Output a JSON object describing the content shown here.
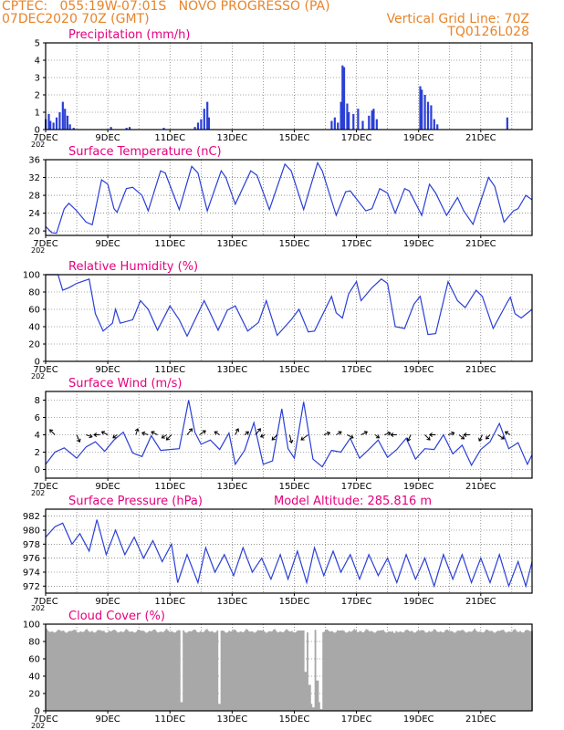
{
  "header": {
    "line1_left": "CPTEC:   055:19W-07:01S   NOVO PROGRESSO (PA)",
    "line2_left": "07DEC2020 70Z (GMT)",
    "line2_right": "Vertical Grid Line: 70Z",
    "line3_right": "TQ0126L028",
    "year_fragment": "202"
  },
  "colors": {
    "header": "#e8842a",
    "title": "#e6007e",
    "series": "#2a3fd6",
    "cloud": "#a8a8a8",
    "grid": "#555555"
  },
  "x_ticks": [
    "7DEC",
    "9DEC",
    "11DEC",
    "13DEC",
    "15DEC",
    "17DEC",
    "19DEC",
    "21DEC"
  ],
  "chart_data": [
    {
      "type": "bar",
      "title": "Precipitation (mm/h)",
      "x_range": [
        "07DEC2020",
        "22DEC2020"
      ],
      "ylim": [
        0,
        5
      ],
      "y_ticks": [
        "0",
        "1",
        "2",
        "3",
        "4",
        "5"
      ],
      "points": [
        [
          0.0,
          0.6
        ],
        [
          0.1,
          0.9
        ],
        [
          0.15,
          0.5
        ],
        [
          0.25,
          0.4
        ],
        [
          0.35,
          0.7
        ],
        [
          0.45,
          1.0
        ],
        [
          0.55,
          1.6
        ],
        [
          0.62,
          1.2
        ],
        [
          0.7,
          0.8
        ],
        [
          0.78,
          0.3
        ],
        [
          0.9,
          0.1
        ],
        [
          2.1,
          0.15
        ],
        [
          2.6,
          0.1
        ],
        [
          2.7,
          0.15
        ],
        [
          3.8,
          0.1
        ],
        [
          4.8,
          0.15
        ],
        [
          4.9,
          0.4
        ],
        [
          5.0,
          0.6
        ],
        [
          5.1,
          1.2
        ],
        [
          5.2,
          1.6
        ],
        [
          5.25,
          0.7
        ],
        [
          9.2,
          0.5
        ],
        [
          9.3,
          0.7
        ],
        [
          9.4,
          0.4
        ],
        [
          9.5,
          1.6
        ],
        [
          9.55,
          3.7
        ],
        [
          9.6,
          3.6
        ],
        [
          9.7,
          1.5
        ],
        [
          9.75,
          1.0
        ],
        [
          9.9,
          0.9
        ],
        [
          10.05,
          1.2
        ],
        [
          10.2,
          0.5
        ],
        [
          10.4,
          0.8
        ],
        [
          10.5,
          1.1
        ],
        [
          10.55,
          1.2
        ],
        [
          10.65,
          0.6
        ],
        [
          12.05,
          2.5
        ],
        [
          12.1,
          2.3
        ],
        [
          12.2,
          2.0
        ],
        [
          12.3,
          1.6
        ],
        [
          12.4,
          1.4
        ],
        [
          12.5,
          0.6
        ],
        [
          12.6,
          0.3
        ],
        [
          14.85,
          0.7
        ]
      ]
    },
    {
      "type": "line",
      "title": "Surface Temperature (nC)",
      "x_range": [
        "07DEC2020",
        "22DEC2020"
      ],
      "ylim": [
        19,
        36
      ],
      "y_ticks": [
        "20",
        "24",
        "28",
        "32",
        "36"
      ],
      "points": [
        [
          0.0,
          21.0
        ],
        [
          0.2,
          19.6
        ],
        [
          0.35,
          19.5
        ],
        [
          0.6,
          25.0
        ],
        [
          0.75,
          26.2
        ],
        [
          1.0,
          24.5
        ],
        [
          1.3,
          22.0
        ],
        [
          1.5,
          21.4
        ],
        [
          1.8,
          31.5
        ],
        [
          2.0,
          30.5
        ],
        [
          2.2,
          25.0
        ],
        [
          2.3,
          24.2
        ],
        [
          2.6,
          29.5
        ],
        [
          2.8,
          29.8
        ],
        [
          3.1,
          28.0
        ],
        [
          3.3,
          24.5
        ],
        [
          3.7,
          33.5
        ],
        [
          3.85,
          33.0
        ],
        [
          4.3,
          24.8
        ],
        [
          4.7,
          34.5
        ],
        [
          4.9,
          33.0
        ],
        [
          5.2,
          24.5
        ],
        [
          5.65,
          33.5
        ],
        [
          5.8,
          32.0
        ],
        [
          6.1,
          26.0
        ],
        [
          6.6,
          33.5
        ],
        [
          6.8,
          32.5
        ],
        [
          7.2,
          24.8
        ],
        [
          7.7,
          35.0
        ],
        [
          7.9,
          33.5
        ],
        [
          8.3,
          24.8
        ],
        [
          8.75,
          35.3
        ],
        [
          8.9,
          33.5
        ],
        [
          9.35,
          23.5
        ],
        [
          9.65,
          28.8
        ],
        [
          9.8,
          29.0
        ],
        [
          10.3,
          24.5
        ],
        [
          10.5,
          25.0
        ],
        [
          10.75,
          29.5
        ],
        [
          11.0,
          28.5
        ],
        [
          11.25,
          24.0
        ],
        [
          11.55,
          29.5
        ],
        [
          11.7,
          29.0
        ],
        [
          12.1,
          23.5
        ],
        [
          12.35,
          30.5
        ],
        [
          12.55,
          28.5
        ],
        [
          12.9,
          23.5
        ],
        [
          13.25,
          27.5
        ],
        [
          13.45,
          24.5
        ],
        [
          13.75,
          21.5
        ],
        [
          14.25,
          32.0
        ],
        [
          14.45,
          30.0
        ],
        [
          14.75,
          22.0
        ],
        [
          15.05,
          24.5
        ],
        [
          15.2,
          25.0
        ],
        [
          15.45,
          28.0
        ],
        [
          15.65,
          27.0
        ]
      ]
    },
    {
      "type": "line",
      "title": "Relative Humidity (%)",
      "x_range": [
        "07DEC2020",
        "22DEC2020"
      ],
      "ylim": [
        0,
        100
      ],
      "y_ticks": [
        "0",
        "20",
        "40",
        "60",
        "80",
        "100"
      ],
      "points": [
        [
          0.0,
          100
        ],
        [
          0.4,
          100
        ],
        [
          0.55,
          82
        ],
        [
          0.75,
          85
        ],
        [
          1.0,
          90
        ],
        [
          1.4,
          95
        ],
        [
          1.6,
          55
        ],
        [
          1.85,
          35
        ],
        [
          2.15,
          44
        ],
        [
          2.25,
          60
        ],
        [
          2.4,
          44
        ],
        [
          2.8,
          48
        ],
        [
          3.05,
          70
        ],
        [
          3.3,
          60
        ],
        [
          3.6,
          36
        ],
        [
          4.0,
          64
        ],
        [
          4.3,
          48
        ],
        [
          4.55,
          29
        ],
        [
          5.1,
          70
        ],
        [
          5.25,
          59
        ],
        [
          5.55,
          36
        ],
        [
          5.85,
          59
        ],
        [
          6.1,
          64
        ],
        [
          6.5,
          35
        ],
        [
          6.85,
          45
        ],
        [
          7.1,
          70
        ],
        [
          7.45,
          30
        ],
        [
          7.9,
          48
        ],
        [
          8.15,
          60
        ],
        [
          8.45,
          34
        ],
        [
          8.65,
          35
        ],
        [
          9.2,
          75
        ],
        [
          9.35,
          56
        ],
        [
          9.55,
          50
        ],
        [
          9.75,
          78
        ],
        [
          10.0,
          92
        ],
        [
          10.15,
          70
        ],
        [
          10.5,
          85
        ],
        [
          10.8,
          95
        ],
        [
          11.0,
          90
        ],
        [
          11.25,
          40
        ],
        [
          11.55,
          38
        ],
        [
          11.85,
          66
        ],
        [
          12.05,
          75
        ],
        [
          12.3,
          31
        ],
        [
          12.55,
          32
        ],
        [
          12.95,
          92
        ],
        [
          13.25,
          70
        ],
        [
          13.5,
          62
        ],
        [
          13.85,
          82
        ],
        [
          14.05,
          75
        ],
        [
          14.4,
          38
        ],
        [
          14.85,
          68
        ],
        [
          14.95,
          74
        ],
        [
          15.1,
          55
        ],
        [
          15.3,
          50
        ],
        [
          15.65,
          60
        ]
      ]
    },
    {
      "type": "line",
      "title": "Surface Wind (m/s)",
      "x_range": [
        "07DEC2020",
        "22DEC2020"
      ],
      "ylim": [
        -1,
        9
      ],
      "y_ticks": [
        "0",
        "2",
        "4",
        "6",
        "8"
      ],
      "points": [
        [
          0.0,
          0.6
        ],
        [
          0.3,
          2.0
        ],
        [
          0.6,
          2.5
        ],
        [
          1.0,
          1.3
        ],
        [
          1.3,
          2.6
        ],
        [
          1.6,
          3.2
        ],
        [
          1.9,
          2.1
        ],
        [
          2.2,
          3.4
        ],
        [
          2.5,
          4.3
        ],
        [
          2.8,
          1.9
        ],
        [
          3.1,
          1.5
        ],
        [
          3.4,
          3.9
        ],
        [
          3.7,
          2.2
        ],
        [
          4.0,
          2.3
        ],
        [
          4.3,
          2.4
        ],
        [
          4.6,
          8.0
        ],
        [
          4.8,
          4.3
        ],
        [
          5.0,
          2.9
        ],
        [
          5.3,
          3.4
        ],
        [
          5.6,
          2.3
        ],
        [
          5.9,
          4.2
        ],
        [
          6.1,
          0.6
        ],
        [
          6.4,
          2.2
        ],
        [
          6.7,
          5.4
        ],
        [
          7.0,
          0.6
        ],
        [
          7.3,
          1.0
        ],
        [
          7.6,
          7.0
        ],
        [
          7.8,
          2.4
        ],
        [
          8.0,
          1.3
        ],
        [
          8.3,
          7.8
        ],
        [
          8.6,
          1.2
        ],
        [
          8.9,
          0.3
        ],
        [
          9.2,
          2.2
        ],
        [
          9.5,
          2.0
        ],
        [
          9.8,
          3.6
        ],
        [
          10.1,
          1.3
        ],
        [
          10.4,
          2.3
        ],
        [
          10.7,
          3.4
        ],
        [
          11.0,
          1.4
        ],
        [
          11.3,
          2.3
        ],
        [
          11.6,
          3.6
        ],
        [
          11.9,
          1.2
        ],
        [
          12.2,
          2.4
        ],
        [
          12.5,
          2.3
        ],
        [
          12.8,
          4.0
        ],
        [
          13.1,
          1.8
        ],
        [
          13.4,
          2.8
        ],
        [
          13.7,
          0.5
        ],
        [
          14.0,
          2.3
        ],
        [
          14.3,
          3.2
        ],
        [
          14.6,
          5.3
        ],
        [
          14.9,
          2.4
        ],
        [
          15.2,
          3.1
        ],
        [
          15.5,
          0.6
        ],
        [
          15.65,
          1.7
        ]
      ],
      "vectors": [
        [
          0.3,
          -0.5,
          0.5
        ],
        [
          1.0,
          0.3,
          -0.7
        ],
        [
          1.3,
          0.6,
          -0.2
        ],
        [
          1.75,
          -0.6,
          0.0
        ],
        [
          2.0,
          -0.6,
          0.3
        ],
        [
          2.3,
          -0.4,
          -0.3
        ],
        [
          2.9,
          0.2,
          0.6
        ],
        [
          3.3,
          -0.6,
          0.2
        ],
        [
          3.6,
          -0.6,
          0.3
        ],
        [
          3.9,
          -0.5,
          -0.3
        ],
        [
          4.05,
          -0.5,
          -0.5
        ],
        [
          4.55,
          0.5,
          0.6
        ],
        [
          4.95,
          0.6,
          0.4
        ],
        [
          5.6,
          -0.5,
          0.3
        ],
        [
          6.1,
          0.3,
          0.6
        ],
        [
          6.4,
          0.4,
          0.3
        ],
        [
          6.75,
          0.5,
          0.6
        ],
        [
          7.05,
          -0.4,
          -0.2
        ],
        [
          7.45,
          -0.5,
          -0.5
        ],
        [
          7.85,
          0.2,
          -0.8
        ],
        [
          8.45,
          -0.7,
          -0.5
        ],
        [
          8.95,
          0.6,
          0.2
        ],
        [
          9.35,
          0.5,
          0.3
        ],
        [
          9.7,
          0.6,
          -0.3
        ],
        [
          10.15,
          0.6,
          0.3
        ],
        [
          10.6,
          0.4,
          -0.3
        ],
        [
          10.9,
          0.6,
          0.2
        ],
        [
          11.3,
          -0.6,
          0.0
        ],
        [
          11.75,
          -0.3,
          -0.6
        ],
        [
          12.2,
          0.5,
          -0.5
        ],
        [
          12.55,
          -0.6,
          0.0
        ],
        [
          12.95,
          0.6,
          0.2
        ],
        [
          13.3,
          0.5,
          -0.4
        ],
        [
          13.65,
          -0.6,
          0.0
        ],
        [
          14.05,
          -0.3,
          -0.6
        ],
        [
          14.3,
          -0.4,
          -0.4
        ],
        [
          14.55,
          0.6,
          -0.4
        ],
        [
          14.95,
          -0.5,
          0.3
        ]
      ]
    },
    {
      "type": "line",
      "title": "Surface Pressure (hPa)",
      "annotation": "Model Altitude: 285.816 m",
      "x_range": [
        "07DEC2020",
        "22DEC2020"
      ],
      "ylim": [
        971,
        983
      ],
      "y_ticks": [
        "972",
        "974",
        "976",
        "978",
        "980",
        "982"
      ],
      "points": [
        [
          0.0,
          979.0
        ],
        [
          0.3,
          980.5
        ],
        [
          0.55,
          981.0
        ],
        [
          0.85,
          978.0
        ],
        [
          1.1,
          979.5
        ],
        [
          1.4,
          977.0
        ],
        [
          1.65,
          981.5
        ],
        [
          1.95,
          976.5
        ],
        [
          2.25,
          980.0
        ],
        [
          2.55,
          976.5
        ],
        [
          2.85,
          979.0
        ],
        [
          3.15,
          976.0
        ],
        [
          3.45,
          978.5
        ],
        [
          3.75,
          975.5
        ],
        [
          4.05,
          978.0
        ],
        [
          4.25,
          972.5
        ],
        [
          4.55,
          976.5
        ],
        [
          4.9,
          972.5
        ],
        [
          5.15,
          977.5
        ],
        [
          5.45,
          974.0
        ],
        [
          5.75,
          976.5
        ],
        [
          6.05,
          973.5
        ],
        [
          6.35,
          977.5
        ],
        [
          6.65,
          974.0
        ],
        [
          6.95,
          976.0
        ],
        [
          7.25,
          973.0
        ],
        [
          7.55,
          976.5
        ],
        [
          7.8,
          973.0
        ],
        [
          8.1,
          977.0
        ],
        [
          8.4,
          972.5
        ],
        [
          8.65,
          977.5
        ],
        [
          8.95,
          973.5
        ],
        [
          9.25,
          977.0
        ],
        [
          9.5,
          974.0
        ],
        [
          9.8,
          976.5
        ],
        [
          10.1,
          973.0
        ],
        [
          10.4,
          976.5
        ],
        [
          10.7,
          973.5
        ],
        [
          11.0,
          976.0
        ],
        [
          11.3,
          972.5
        ],
        [
          11.6,
          976.5
        ],
        [
          11.9,
          973.0
        ],
        [
          12.2,
          976.0
        ],
        [
          12.5,
          972.0
        ],
        [
          12.8,
          976.5
        ],
        [
          13.1,
          973.0
        ],
        [
          13.4,
          976.5
        ],
        [
          13.7,
          972.5
        ],
        [
          14.0,
          976.0
        ],
        [
          14.3,
          972.5
        ],
        [
          14.6,
          976.5
        ],
        [
          14.9,
          972.0
        ],
        [
          15.2,
          975.5
        ],
        [
          15.45,
          972.0
        ],
        [
          15.65,
          975.5
        ]
      ]
    },
    {
      "type": "bar",
      "title": "Cloud Cover (%)",
      "x_range": [
        "07DEC2020",
        "22DEC2020"
      ],
      "ylim": [
        0,
        100
      ],
      "y_ticks": [
        "0",
        "20",
        "40",
        "60",
        "80",
        "100"
      ],
      "baseline": 95,
      "dips": [
        [
          4.33,
          10
        ],
        [
          5.55,
          8
        ],
        [
          8.33,
          45
        ],
        [
          8.45,
          30
        ],
        [
          8.55,
          8
        ],
        [
          8.6,
          4
        ],
        [
          8.7,
          35
        ],
        [
          8.78,
          10
        ],
        [
          8.85,
          2
        ],
        [
          10.1,
          92
        ],
        [
          11.2,
          90
        ]
      ]
    }
  ]
}
